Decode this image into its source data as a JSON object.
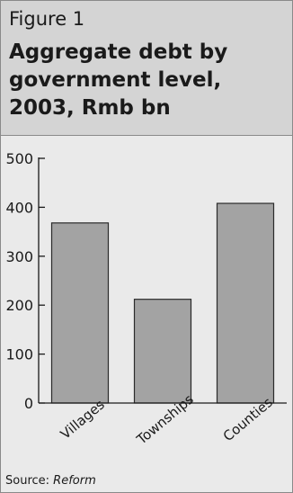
{
  "figure": {
    "label": "Figure 1",
    "title": "Aggregate debt by government level, 2003, Rmb bn"
  },
  "source": {
    "prefix": "Source: ",
    "name": "Reform"
  },
  "colors": {
    "bar_fill": "#a3a3a3",
    "bar_stroke": "#2b2b2b",
    "axis": "#1a1a1a",
    "header_bg": "#d4d4d4",
    "plot_bg": "#eaeaea"
  },
  "chart_data": {
    "type": "bar",
    "categories": [
      "Villages",
      "Townships",
      "Counties"
    ],
    "values": [
      368,
      212,
      408
    ],
    "title": "Aggregate debt by government level, 2003, Rmb bn",
    "xlabel": "",
    "ylabel": "",
    "ylim": [
      0,
      500
    ],
    "yticks": [
      0,
      100,
      200,
      300,
      400,
      500
    ],
    "grid": false,
    "legend": "none"
  }
}
